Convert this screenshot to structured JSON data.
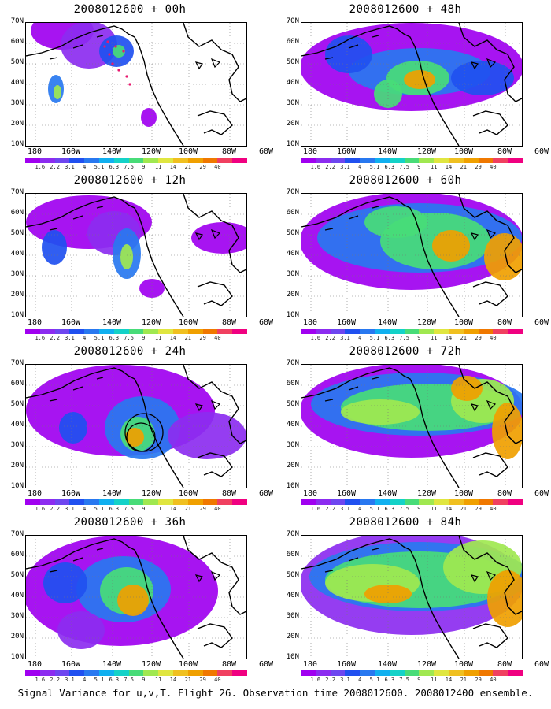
{
  "panels": [
    {
      "title": "2008012600 + 00h",
      "col": 0,
      "row": 0,
      "level": 0,
      "markers": "dots",
      "blobs": [
        [
          46,
          10,
          40,
          24,
          "#a000f0"
        ],
        [
          80,
          28,
          36,
          30,
          "#8c2cf0"
        ],
        [
          38,
          84,
          10,
          18,
          "#2878f0"
        ],
        [
          40,
          88,
          5,
          9,
          "#a0e850"
        ],
        [
          115,
          36,
          22,
          20,
          "#2050f0"
        ],
        [
          118,
          36,
          8,
          8,
          "#48dc78"
        ],
        [
          156,
          120,
          10,
          12,
          "#a000f0"
        ]
      ]
    },
    {
      "title": "2008012600 + 12h",
      "col": 0,
      "row": 1,
      "level": 1,
      "markers": "",
      "blobs": [
        [
          80,
          36,
          80,
          34,
          "#a000f0"
        ],
        [
          112,
          50,
          34,
          28,
          "#8c2cf0"
        ],
        [
          128,
          76,
          18,
          32,
          "#2878f0"
        ],
        [
          128,
          80,
          8,
          16,
          "#a0e850"
        ],
        [
          36,
          68,
          16,
          22,
          "#2050f0"
        ],
        [
          250,
          56,
          40,
          20,
          "#a000f0"
        ],
        [
          160,
          120,
          16,
          12,
          "#a000f0"
        ]
      ]
    },
    {
      "title": "2008012600 + 24h",
      "col": 0,
      "row": 2,
      "level": 1,
      "markers": "circles",
      "blobs": [
        [
          120,
          58,
          120,
          58,
          "#a000f0"
        ],
        [
          148,
          80,
          48,
          40,
          "#2878f0"
        ],
        [
          142,
          88,
          22,
          22,
          "#48dc78"
        ],
        [
          138,
          92,
          12,
          12,
          "#f0a000"
        ],
        [
          60,
          80,
          18,
          20,
          "#2050f0"
        ],
        [
          230,
          90,
          50,
          30,
          "#8c2cf0"
        ]
      ]
    },
    {
      "title": "2008012600 + 36h",
      "col": 0,
      "row": 3,
      "level": 2,
      "markers": "",
      "blobs": [
        [
          120,
          70,
          124,
          70,
          "#a000f0"
        ],
        [
          124,
          68,
          60,
          42,
          "#2878f0"
        ],
        [
          128,
          70,
          34,
          30,
          "#48dc78"
        ],
        [
          136,
          82,
          20,
          20,
          "#f0a000"
        ],
        [
          50,
          60,
          28,
          26,
          "#2050f0"
        ],
        [
          70,
          120,
          30,
          24,
          "#8c2cf0"
        ]
      ]
    },
    {
      "title": "2008012600 + 48h",
      "col": 1,
      "row": 0,
      "level": 2,
      "markers": "",
      "blobs": [
        [
          140,
          56,
          142,
          56,
          "#a000f0"
        ],
        [
          150,
          62,
          90,
          30,
          "#2878f0"
        ],
        [
          148,
          70,
          40,
          22,
          "#48dc78"
        ],
        [
          150,
          72,
          20,
          12,
          "#f0a000"
        ],
        [
          110,
          90,
          18,
          18,
          "#48dc78"
        ],
        [
          60,
          40,
          30,
          24,
          "#2050f0"
        ],
        [
          230,
          70,
          40,
          22,
          "#2050f0"
        ]
      ]
    },
    {
      "title": "2008012600 + 60h",
      "col": 1,
      "row": 1,
      "level": 3,
      "markers": "",
      "blobs": [
        [
          140,
          60,
          142,
          62,
          "#a000f0"
        ],
        [
          150,
          56,
          130,
          44,
          "#2878f0"
        ],
        [
          170,
          60,
          70,
          36,
          "#48dc78"
        ],
        [
          190,
          66,
          24,
          20,
          "#f0a000"
        ],
        [
          258,
          80,
          26,
          30,
          "#f0a000"
        ],
        [
          120,
          36,
          40,
          20,
          "#48dc78"
        ]
      ]
    },
    {
      "title": "2008012600 + 72h",
      "col": 1,
      "row": 2,
      "level": 3,
      "markers": "",
      "blobs": [
        [
          140,
          58,
          142,
          60,
          "#a000f0"
        ],
        [
          150,
          50,
          138,
          40,
          "#2878f0"
        ],
        [
          160,
          54,
          110,
          30,
          "#48dc78"
        ],
        [
          230,
          46,
          40,
          28,
          "#a0e850"
        ],
        [
          210,
          30,
          20,
          16,
          "#f0a000"
        ],
        [
          262,
          84,
          20,
          36,
          "#f0a000"
        ],
        [
          100,
          60,
          50,
          16,
          "#a0e850"
        ]
      ]
    },
    {
      "title": "2008012600 + 84h",
      "col": 1,
      "row": 3,
      "level": 4,
      "markers": "",
      "blobs": [
        [
          140,
          60,
          142,
          66,
          "#8c2cf0"
        ],
        [
          150,
          52,
          140,
          44,
          "#2878f0"
        ],
        [
          150,
          56,
          120,
          36,
          "#48dc78"
        ],
        [
          90,
          60,
          60,
          24,
          "#a0e850"
        ],
        [
          230,
          40,
          50,
          34,
          "#a0e850"
        ],
        [
          262,
          80,
          26,
          36,
          "#f0a000"
        ],
        [
          110,
          74,
          30,
          12,
          "#f0a000"
        ]
      ]
    }
  ],
  "lat_labels": [
    "70N",
    "60N",
    "50N",
    "40N",
    "30N",
    "20N",
    "10N"
  ],
  "lon_labels": [
    "180",
    "160W",
    "140W",
    "120W",
    "100W",
    "80W",
    "60W"
  ],
  "colorbar": {
    "colors": [
      "#a000f0",
      "#8c2cf0",
      "#6e46f0",
      "#2050f0",
      "#2878f0",
      "#10b0f0",
      "#14d2c8",
      "#48dc78",
      "#a0e850",
      "#e0e640",
      "#f0c020",
      "#f0a000",
      "#f07800",
      "#f04060",
      "#f00080"
    ],
    "labels": [
      "1.6",
      "2.2",
      "3.1",
      "4",
      "5.1",
      "6.3",
      "7.5",
      "9",
      "11",
      "14",
      "21",
      "29",
      "40"
    ]
  },
  "footer": "Signal Variance for u,v,T. Flight 26. Observation time 2008012600. 2008012400 ensemble."
}
